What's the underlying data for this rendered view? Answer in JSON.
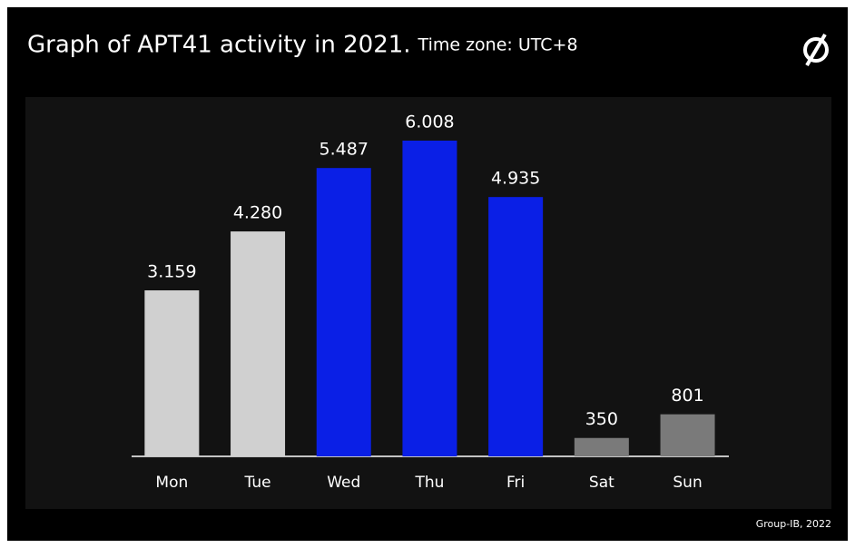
{
  "chart_data": {
    "type": "bar",
    "title": "Graph of APT41 activity in 2021.",
    "subtitle": "Time zone: UTC+8",
    "source": "Group-IB, 2022",
    "categories": [
      "Mon",
      "Tue",
      "Wed",
      "Thu",
      "Fri",
      "Sat",
      "Sun"
    ],
    "values": [
      3159,
      4280,
      5487,
      6008,
      4935,
      350,
      801
    ],
    "value_labels": [
      "3.159",
      "4.280",
      "5.487",
      "6.008",
      "4.935",
      "350",
      "801"
    ],
    "colors": [
      "#d0d0d0",
      "#d0d0d0",
      "#0a1fe6",
      "#0a1fe6",
      "#0a1fe6",
      "#7a7a7a",
      "#7a7a7a"
    ]
  }
}
